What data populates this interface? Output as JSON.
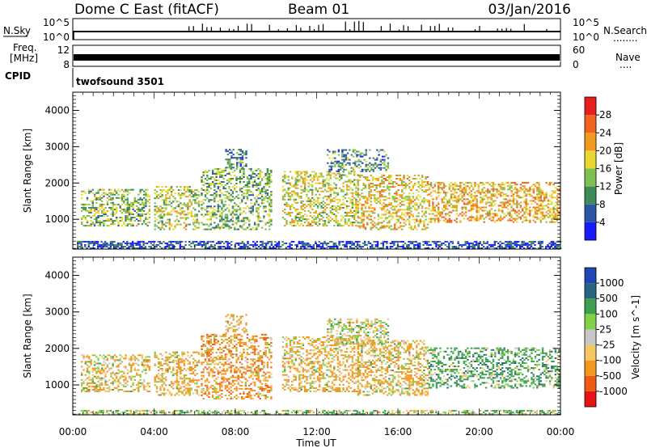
{
  "header": {
    "station": "Dome C East (fitACF)",
    "beam": "Beam 01",
    "date": "03/Jan/2016"
  },
  "nsky_panel": {
    "left_label": "N.Sky",
    "left_ticks": [
      "10^5",
      "10^0"
    ],
    "right_ticks": [
      "10^5",
      "10^0"
    ],
    "right_label": "N.Search",
    "right_dots": "........"
  },
  "freq_panel": {
    "left_label_1": "Freq.",
    "left_label_2": "[MHz]",
    "left_ticks": [
      "12",
      "8"
    ],
    "right_ticks": [
      "60",
      "0"
    ],
    "right_label": "Nave",
    "right_dots": "....",
    "cpid_label": "CPID",
    "cpid_value": "twofsound 3501"
  },
  "x_axis": {
    "label": "Time UT",
    "ticks": [
      "00:00",
      "04:00",
      "08:00",
      "12:00",
      "16:00",
      "20:00",
      "00:00"
    ]
  },
  "colors": {
    "power": [
      "#1a1aff",
      "#2d55a6",
      "#3e8a58",
      "#7fc050",
      "#e8d830",
      "#f29a1e",
      "#f0641e",
      "#e61e1e"
    ],
    "velocity": [
      "#e61414",
      "#f05a14",
      "#f5961e",
      "#f5c864",
      "#c8c8c8",
      "#82d246",
      "#3ca050",
      "#286482",
      "#1e46b4"
    ]
  },
  "chart_data": [
    {
      "type": "heatmap",
      "ylabel": "Slant Range [km]",
      "xlabel": "",
      "x_range_hours": [
        0,
        24
      ],
      "ylim": [
        180,
        4500
      ],
      "y_ticks": [
        1000,
        2000,
        3000,
        4000
      ],
      "colorbar_label": "Power [dB]",
      "colorbar_ticks": [
        4,
        8,
        12,
        16,
        20,
        24,
        28
      ],
      "colorbar_range": [
        0,
        32
      ],
      "echo_bands": [
        {
          "t0": 0.2,
          "t1": 24,
          "r0": 180,
          "r1": 380,
          "value": 5
        },
        {
          "t0": 0.4,
          "t1": 3.8,
          "r0": 800,
          "r1": 1800,
          "value": 14
        },
        {
          "t0": 4.0,
          "t1": 6.2,
          "r0": 700,
          "r1": 1900,
          "value": 16
        },
        {
          "t0": 6.3,
          "t1": 9.8,
          "r0": 700,
          "r1": 2400,
          "value": 13
        },
        {
          "t0": 7.5,
          "t1": 8.5,
          "r0": 2400,
          "r1": 2900,
          "value": 10
        },
        {
          "t0": 10.3,
          "t1": 14.0,
          "r0": 800,
          "r1": 2300,
          "value": 17
        },
        {
          "t0": 12.5,
          "t1": 15.5,
          "r0": 2300,
          "r1": 2900,
          "value": 10
        },
        {
          "t0": 14.0,
          "t1": 17.5,
          "r0": 700,
          "r1": 2200,
          "value": 19
        },
        {
          "t0": 17.5,
          "t1": 23.9,
          "r0": 900,
          "r1": 2000,
          "value": 21
        }
      ]
    },
    {
      "type": "heatmap",
      "ylabel": "Slant Range [km]",
      "xlabel": "Time UT",
      "x_range_hours": [
        0,
        24
      ],
      "ylim": [
        180,
        4500
      ],
      "y_ticks": [
        1000,
        2000,
        3000,
        4000
      ],
      "colorbar_label": "Velocity [m s^-1]",
      "colorbar_ticks": [
        "1000",
        "500",
        "100",
        "25",
        "-25",
        "-100",
        "-500",
        "-1000"
      ],
      "echo_bands": [
        {
          "t0": 0.2,
          "t1": 24,
          "r0": 180,
          "r1": 300,
          "value": 60
        },
        {
          "t0": 0.4,
          "t1": 3.8,
          "r0": 800,
          "r1": 1800,
          "value": -60
        },
        {
          "t0": 4.0,
          "t1": 6.2,
          "r0": 700,
          "r1": 1900,
          "value": -150
        },
        {
          "t0": 6.3,
          "t1": 9.8,
          "r0": 600,
          "r1": 2400,
          "value": -300
        },
        {
          "t0": 7.5,
          "t1": 8.5,
          "r0": 2400,
          "r1": 2900,
          "value": -200
        },
        {
          "t0": 10.3,
          "t1": 14.0,
          "r0": 800,
          "r1": 2300,
          "value": -150
        },
        {
          "t0": 12.5,
          "t1": 15.5,
          "r0": 2100,
          "r1": 2800,
          "value": 0
        },
        {
          "t0": 14.0,
          "t1": 17.5,
          "r0": 700,
          "r1": 2200,
          "value": -100
        },
        {
          "t0": 17.5,
          "t1": 23.9,
          "r0": 900,
          "r1": 2000,
          "value": 250
        }
      ]
    }
  ]
}
